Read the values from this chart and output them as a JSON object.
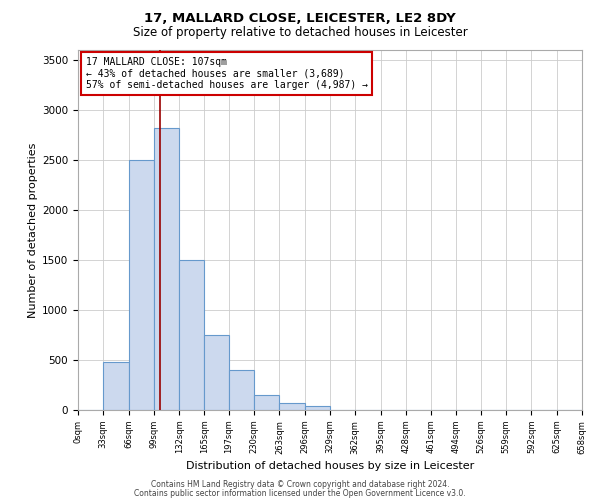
{
  "title1": "17, MALLARD CLOSE, LEICESTER, LE2 8DY",
  "title2": "Size of property relative to detached houses in Leicester",
  "xlabel": "Distribution of detached houses by size in Leicester",
  "ylabel": "Number of detached properties",
  "bin_edges": [
    0,
    33,
    66,
    99,
    132,
    165,
    197,
    230,
    263,
    296,
    329,
    362,
    395,
    428,
    461,
    494,
    526,
    559,
    592,
    625,
    658
  ],
  "bin_counts": [
    5,
    480,
    2500,
    2820,
    1500,
    750,
    400,
    150,
    75,
    40,
    0,
    0,
    0,
    0,
    0,
    0,
    0,
    0,
    0,
    0
  ],
  "bar_color": "#ccd9ee",
  "bar_edge_color": "#6699cc",
  "vline_color": "#990000",
  "vline_x": 107,
  "annotation_title": "17 MALLARD CLOSE: 107sqm",
  "annotation_line1": "← 43% of detached houses are smaller (3,689)",
  "annotation_line2": "57% of semi-detached houses are larger (4,987) →",
  "annotation_box_color": "#ffffff",
  "annotation_box_edge": "#cc0000",
  "ylim": [
    0,
    3600
  ],
  "yticks": [
    0,
    500,
    1000,
    1500,
    2000,
    2500,
    3000,
    3500
  ],
  "tick_labels": [
    "0sqm",
    "33sqm",
    "66sqm",
    "99sqm",
    "132sqm",
    "165sqm",
    "197sqm",
    "230sqm",
    "263sqm",
    "296sqm",
    "329sqm",
    "362sqm",
    "395sqm",
    "428sqm",
    "461sqm",
    "494sqm",
    "526sqm",
    "559sqm",
    "592sqm",
    "625sqm",
    "658sqm"
  ],
  "footer1": "Contains HM Land Registry data © Crown copyright and database right 2024.",
  "footer2": "Contains public sector information licensed under the Open Government Licence v3.0.",
  "bg_color": "#ffffff",
  "grid_color": "#cccccc"
}
